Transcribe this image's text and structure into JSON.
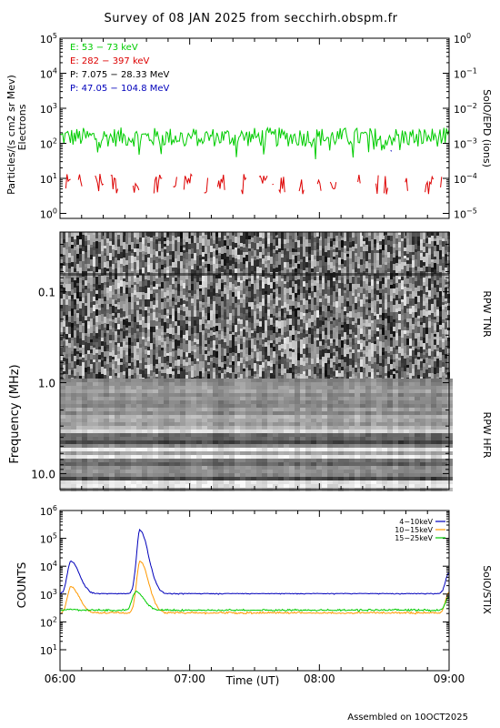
{
  "title": "Survey of 08 JAN 2025 from secchirh.obspm.fr",
  "footer": "Assembled on 10OCT2025",
  "x_axis": {
    "label": "Time (UT)",
    "ticks": [
      "06:00",
      "07:00",
      "08:00",
      "09:00"
    ]
  },
  "colors": {
    "green": "#00cc00",
    "red": "#dd0000",
    "blue": "#0000bb",
    "orange": "#ff9900",
    "black": "#000000"
  },
  "panels": {
    "epd": {
      "ylabel1": "Particles/(s cm2 sr Mev)",
      "ylabel2": "Electrons",
      "right_label": "SolO/EPD (ions)",
      "left_ticks": [
        {
          "base": "10",
          "exp": "5"
        },
        {
          "base": "10",
          "exp": "4"
        },
        {
          "base": "10",
          "exp": "3"
        },
        {
          "base": "10",
          "exp": "2"
        },
        {
          "base": "10",
          "exp": "1"
        },
        {
          "base": "10",
          "exp": "0"
        }
      ],
      "right_ticks": [
        {
          "base": "10",
          "exp": "0"
        },
        {
          "base": "10",
          "exp": "−1"
        },
        {
          "base": "10",
          "exp": "−2"
        },
        {
          "base": "10",
          "exp": "−3"
        },
        {
          "base": "10",
          "exp": "−4"
        },
        {
          "base": "10",
          "exp": "−5"
        }
      ],
      "legend": [
        {
          "text": "E: 53 − 73 keV",
          "color": "#00cc00"
        },
        {
          "text": "E: 282 − 397 keV",
          "color": "#dd0000"
        },
        {
          "text": "P: 7.075 − 28.33 MeV",
          "color": "#000000"
        },
        {
          "text": "P: 47.05 − 104.8 MeV",
          "color": "#0000bb"
        }
      ]
    },
    "rpw": {
      "ylabel": "Frequency (MHz)",
      "ticks": [
        "0.1",
        "1.0",
        "10.0"
      ],
      "tnr_label": "RPW TNR",
      "hfr_label": "RPW HFR"
    },
    "stix": {
      "ylabel": "COUNTS",
      "right_label": "SolO/STIX",
      "ticks": [
        {
          "base": "10",
          "exp": "6"
        },
        {
          "base": "10",
          "exp": "5"
        },
        {
          "base": "10",
          "exp": "4"
        },
        {
          "base": "10",
          "exp": "3"
        },
        {
          "base": "10",
          "exp": "2"
        },
        {
          "base": "10",
          "exp": "1"
        }
      ],
      "legend": [
        {
          "text": "4−10keV",
          "color": "#0000bb"
        },
        {
          "text": "10−15keV",
          "color": "#ff9900"
        },
        {
          "text": "15−25keV",
          "color": "#00cc00"
        }
      ]
    }
  },
  "chart_data": [
    {
      "type": "line",
      "title": "Survey of 08 JAN 2025 from secchirh.obspm.fr",
      "panel": "SolO/EPD",
      "x_range": [
        "06:00",
        "09:00"
      ],
      "ylim_left": [
        1,
        100000
      ],
      "ylim_right": [
        1e-05,
        1
      ],
      "yscale": "log",
      "series": [
        {
          "name": "E: 53 - 73 keV",
          "approx_level": 150,
          "range": [
            50,
            300
          ]
        },
        {
          "name": "E: 282 - 397 keV",
          "approx_level": 6,
          "range": [
            4,
            15
          ],
          "note": "intermittent"
        }
      ]
    },
    {
      "type": "heatmap",
      "panel": "RPW TNR / RPW HFR",
      "ylabel": "Frequency (MHz)",
      "yscale": "log",
      "y_ticks": [
        0.1,
        1.0,
        10.0
      ],
      "x_range": [
        "06:00",
        "09:00"
      ]
    },
    {
      "type": "line",
      "panel": "SolO/STIX",
      "ylabel": "COUNTS",
      "xlabel": "Time (UT)",
      "yscale": "log",
      "ylim": [
        10,
        1000000
      ],
      "series": [
        {
          "name": "4-10keV",
          "baseline": 1000,
          "peaks": [
            {
              "time": "06:05",
              "value": 15000
            },
            {
              "time": "06:37",
              "value": 200000
            },
            {
              "time": "09:00",
              "value": 6000
            }
          ]
        },
        {
          "name": "10-15keV",
          "baseline": 200,
          "peaks": [
            {
              "time": "06:05",
              "value": 1800
            },
            {
              "time": "06:37",
              "value": 15000
            },
            {
              "time": "09:00",
              "value": 1200
            }
          ]
        },
        {
          "name": "15-25keV",
          "baseline": 250,
          "peaks": [
            {
              "time": "06:04",
              "value": 280
            },
            {
              "time": "06:35",
              "value": 1200
            },
            {
              "time": "09:00",
              "value": 800
            }
          ]
        }
      ]
    }
  ]
}
